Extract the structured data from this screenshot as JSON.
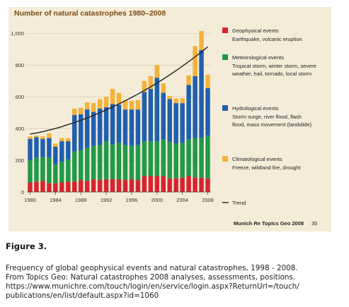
{
  "chart_data": {
    "type": "bar",
    "title": "Number of natural catastrophes 1980–2008",
    "x": [
      1980,
      1981,
      1982,
      1983,
      1984,
      1985,
      1986,
      1987,
      1988,
      1989,
      1990,
      1991,
      1992,
      1993,
      1994,
      1995,
      1996,
      1997,
      1998,
      1999,
      2000,
      2001,
      2002,
      2003,
      2004,
      2005,
      2006,
      2007,
      2008
    ],
    "x_tick_labels": [
      "1980",
      "1984",
      "1988",
      "1992",
      "1996",
      "2000",
      "2004",
      "2008"
    ],
    "y_tick_labels": [
      "0",
      "200",
      "400",
      "600",
      "800",
      "1,000"
    ],
    "ylim": [
      0,
      1050
    ],
    "stacked": true,
    "series": [
      {
        "name": "Geophysical events",
        "description": "Earthquake, volcanic eruption",
        "color": "#d9232d",
        "values": [
          60,
          65,
          70,
          55,
          55,
          60,
          65,
          65,
          75,
          70,
          80,
          75,
          80,
          80,
          80,
          75,
          80,
          75,
          100,
          100,
          100,
          100,
          85,
          85,
          90,
          100,
          90,
          90,
          85
        ]
      },
      {
        "name": "Meteorological events",
        "description": "Tropical storm, winter storm, severe weather, hail, tornado, local storm",
        "color": "#1f9a48",
        "values": [
          140,
          150,
          150,
          160,
          120,
          130,
          140,
          190,
          190,
          210,
          210,
          220,
          240,
          220,
          230,
          220,
          210,
          220,
          220,
          220,
          220,
          230,
          230,
          220,
          220,
          230,
          250,
          250,
          270
        ]
      },
      {
        "name": "Hydrological events",
        "description": "Storm surge, river flood, flash flood, mass movement (landslide)",
        "color": "#1f5fb0",
        "values": [
          135,
          130,
          115,
          125,
          110,
          130,
          115,
          230,
          225,
          240,
          215,
          230,
          215,
          255,
          240,
          225,
          230,
          225,
          310,
          330,
          400,
          295,
          270,
          255,
          250,
          345,
          390,
          555,
          300
        ]
      },
      {
        "name": "Climatological events",
        "description": "Freeze, wildland fire, drought",
        "color": "#f3b23a",
        "values": [
          15,
          10,
          15,
          30,
          20,
          20,
          20,
          40,
          40,
          45,
          55,
          60,
          65,
          95,
          75,
          60,
          55,
          60,
          70,
          80,
          80,
          60,
          20,
          30,
          30,
          60,
          190,
          120,
          85
        ]
      }
    ],
    "trend": {
      "name": "Trend",
      "color": "#222222",
      "values": [
        365,
        372,
        380,
        390,
        400,
        412,
        425,
        438,
        452,
        467,
        483,
        500,
        518,
        536,
        555,
        575,
        596,
        617,
        640,
        663,
        687,
        712,
        738,
        765,
        793,
        822,
        852,
        883,
        915
      ]
    },
    "legend_position": "right",
    "source": "Munich Re Topics Geo 2008",
    "page_number": "35"
  },
  "figure_label": "Figure 3.",
  "caption": [
    "Frequency of global geophysical events and natural catastrophes, 1998 - 2008.",
    "From Topics Geo: Natural catastrophes 2008 analyses, assessments, positions.",
    "https://www.munichre.com/touch/login/en/service/login.aspx?ReturnUrl=/touch/",
    "publications/en/list/default.aspx?id=1060"
  ]
}
